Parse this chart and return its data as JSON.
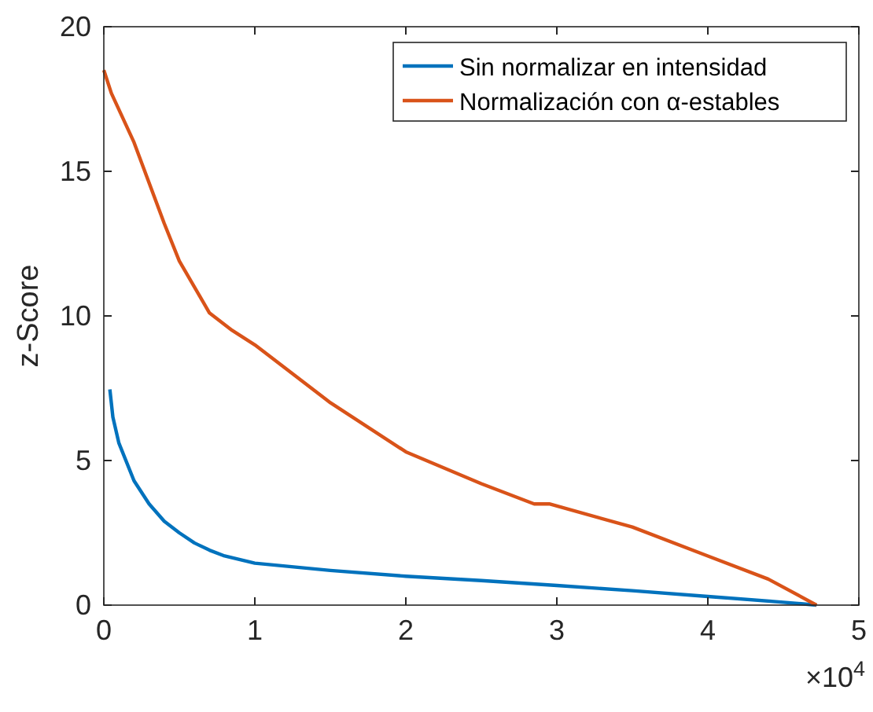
{
  "chart_data": {
    "type": "line",
    "ylabel": "z-Score",
    "xlim": [
      0,
      5
    ],
    "ylim": [
      0,
      20
    ],
    "xticks": [
      0,
      1,
      2,
      3,
      4,
      5
    ],
    "yticks": [
      0,
      5,
      10,
      15,
      20
    ],
    "grid": false,
    "legend": "top right",
    "line_style": "solid",
    "marker": "none",
    "annotations": [
      "×10$^{4}$"
    ],
    "series": [
      {
        "name": "Sin normalizar en intensidad",
        "color": "#0072bd",
        "x": [
          0.04,
          0.06,
          0.1,
          0.2,
          0.3,
          0.4,
          0.5,
          0.6,
          0.7,
          0.8,
          1.0,
          1.5,
          2.0,
          2.5,
          3.0,
          3.5,
          4.0,
          4.5,
          4.72
        ],
        "values": [
          7.46,
          6.5,
          5.6,
          4.3,
          3.5,
          2.9,
          2.5,
          2.15,
          1.9,
          1.7,
          1.45,
          1.2,
          1.0,
          0.85,
          0.68,
          0.5,
          0.3,
          0.1,
          0
        ]
      },
      {
        "name": "Normalización con α-estables",
        "color": "#d95319",
        "x": [
          0,
          0.05,
          0.2,
          0.4,
          0.5,
          0.7,
          0.85,
          1.0,
          1.5,
          2.0,
          2.5,
          2.85,
          2.95,
          3.5,
          4.0,
          4.4,
          4.72
        ],
        "values": [
          18.5,
          17.7,
          16.0,
          13.2,
          11.9,
          10.1,
          9.5,
          9.0,
          7.0,
          5.3,
          4.2,
          3.5,
          3.5,
          2.7,
          1.7,
          0.9,
          0
        ]
      }
    ]
  }
}
